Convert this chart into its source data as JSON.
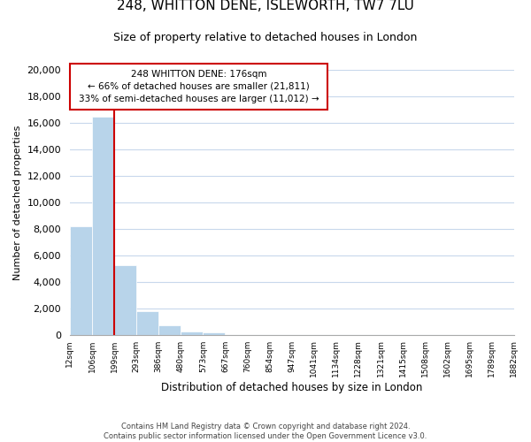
{
  "title": "248, WHITTON DENE, ISLEWORTH, TW7 7LU",
  "subtitle": "Size of property relative to detached houses in London",
  "xlabel": "Distribution of detached houses by size in London",
  "ylabel": "Number of detached properties",
  "bar_values": [
    8200,
    16500,
    5300,
    1800,
    750,
    280,
    200,
    0,
    0,
    0,
    0,
    0,
    0,
    0,
    0,
    0,
    0,
    0,
    0,
    0
  ],
  "bar_labels": [
    "12sqm",
    "106sqm",
    "199sqm",
    "293sqm",
    "386sqm",
    "480sqm",
    "573sqm",
    "667sqm",
    "760sqm",
    "854sqm",
    "947sqm",
    "1041sqm",
    "1134sqm",
    "1228sqm",
    "1321sqm",
    "1415sqm",
    "1508sqm",
    "1602sqm",
    "1695sqm",
    "1789sqm",
    "1882sqm"
  ],
  "bar_color": "#b8d4ea",
  "property_line_color": "#cc0000",
  "annotation_line1": "248 WHITTON DENE: 176sqm",
  "annotation_line2": "← 66% of detached houses are smaller (21,811)",
  "annotation_line3": "33% of semi-detached houses are larger (11,012) →",
  "ylim": [
    0,
    20000
  ],
  "yticks": [
    0,
    2000,
    4000,
    6000,
    8000,
    10000,
    12000,
    14000,
    16000,
    18000,
    20000
  ],
  "footnote": "Contains HM Land Registry data © Crown copyright and database right 2024.\nContains public sector information licensed under the Open Government Licence v3.0.",
  "background_color": "#ffffff",
  "grid_color": "#c8d8ec"
}
